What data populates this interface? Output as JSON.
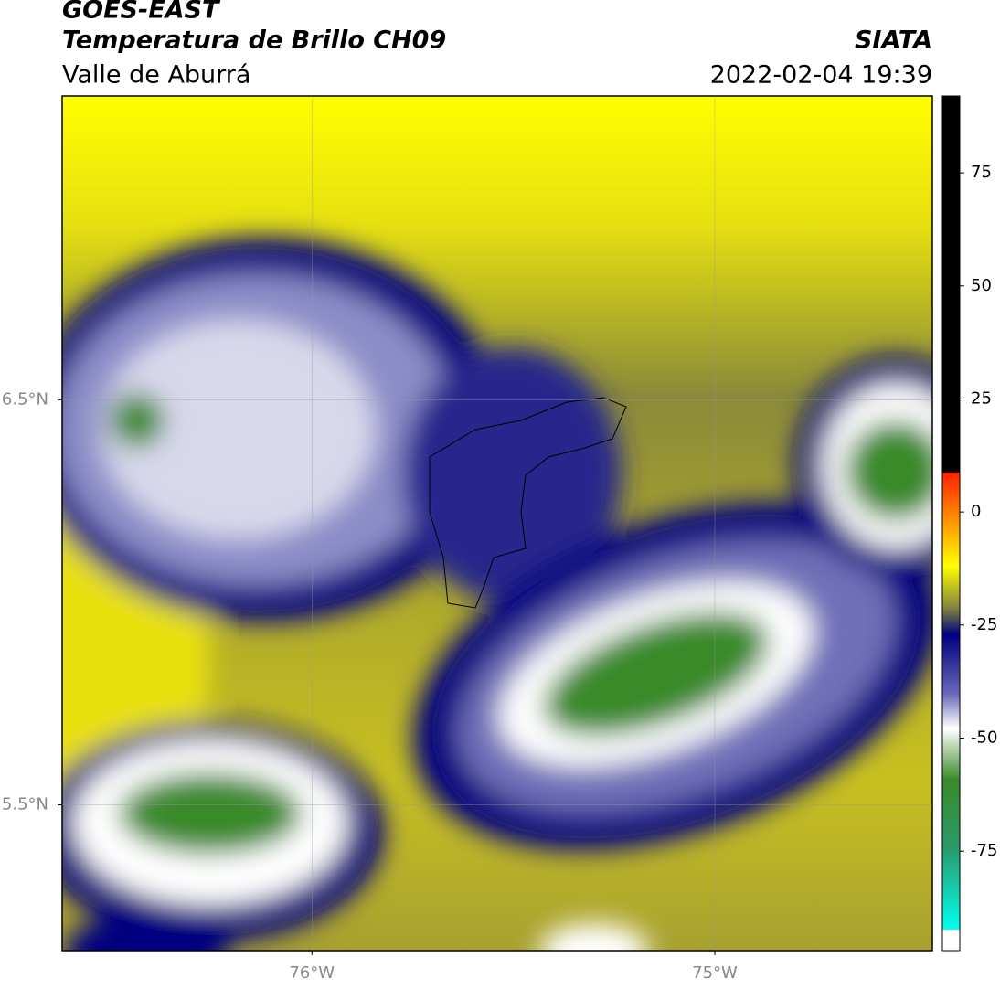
{
  "header": {
    "title": "GOES-EAST",
    "subtitle": "Temperatura de Brillo CH09",
    "region": "Valle de Aburrá",
    "source": "SIATA",
    "datetime": "2022-02-04 19:39"
  },
  "map": {
    "xlim": [
      -76.62,
      -74.46
    ],
    "ylim": [
      5.14,
      7.25
    ],
    "xticks": [
      {
        "value": -76,
        "label": "76°W"
      },
      {
        "value": -75,
        "label": "75°W"
      }
    ],
    "yticks": [
      {
        "value": 6.5,
        "label": "6.5°N"
      },
      {
        "value": 5.5,
        "label": "5.5°N"
      }
    ],
    "grid": true
  },
  "colorbar": {
    "lim": [
      -97,
      92
    ],
    "ticks": [
      75,
      50,
      25,
      0,
      -25,
      -50,
      -75
    ]
  }
}
